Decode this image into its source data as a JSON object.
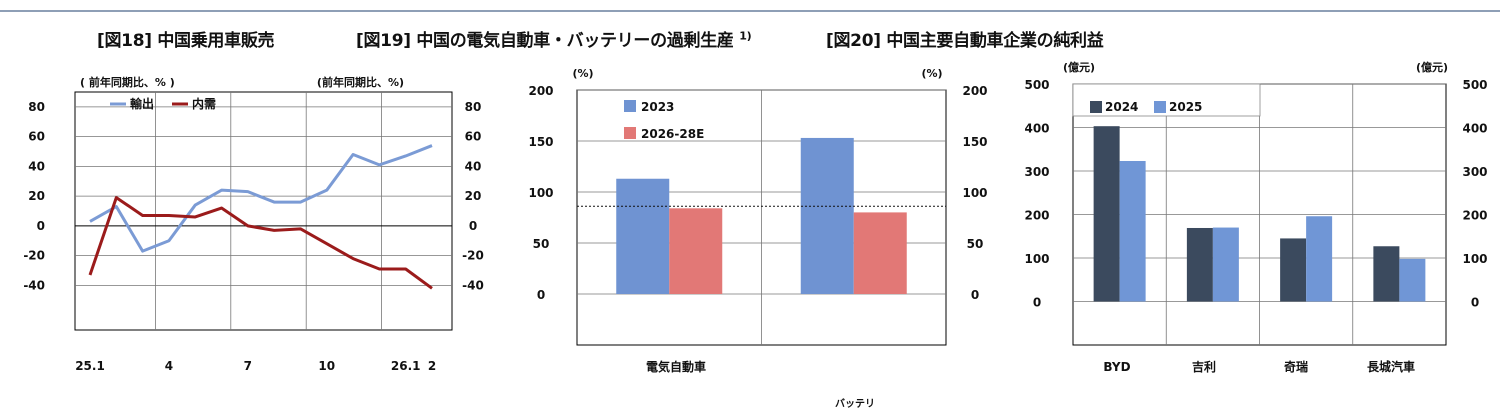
{
  "titles": {
    "fig18": "[図18] 中国乗用車販売",
    "fig19": "[図19] 中国の電気自動車・バッテリーの過剰生産",
    "fig19_sup": "1)",
    "fig20": "[図20] 中国主要自動車企業の純利益"
  },
  "chart_data": [
    {
      "type": "line",
      "title": "[図18] 中国乗用車販売",
      "left_unit": "( 前年同期比、% )",
      "right_unit": "(前年同期比、%)",
      "ylim": [
        -70,
        90
      ],
      "yticks": [
        80,
        60,
        40,
        20,
        0,
        -20,
        -40
      ],
      "x_tick_labels": [
        {
          "i": 0,
          "label": "25.1"
        },
        {
          "i": 3,
          "label": "4"
        },
        {
          "i": 6,
          "label": "7"
        },
        {
          "i": 9,
          "label": "10"
        },
        {
          "i": 12,
          "label": "26.1"
        },
        {
          "i": 13,
          "label": "2"
        }
      ],
      "x": [
        "25.1",
        "25.2",
        "25.3",
        "25.4",
        "25.5",
        "25.6",
        "25.7",
        "25.8",
        "25.9",
        "25.10",
        "25.11",
        "25.12",
        "26.1",
        "26.2"
      ],
      "series": [
        {
          "name": "輸出",
          "color": "#7b9bd5",
          "values": [
            3,
            13,
            -17,
            -10,
            14,
            24,
            23,
            16,
            16,
            24,
            48,
            41,
            47,
            54
          ]
        },
        {
          "name": "内需",
          "color": "#9b1b1b",
          "values": [
            -33,
            19,
            7,
            7,
            6,
            12,
            0,
            -3,
            -2,
            -12,
            -22,
            -29,
            -29,
            -42
          ]
        }
      ],
      "grid": true
    },
    {
      "type": "bar",
      "title": "[図19] 中国の電気自動車・バッテリーの過剰生産",
      "left_unit": "(%)",
      "right_unit": "(%)",
      "ylim": [
        -50,
        200
      ],
      "yticks": [
        200,
        150,
        100,
        50,
        0
      ],
      "categories": [
        "電気自動車",
        "バッテリ"
      ],
      "series": [
        {
          "name": "2023",
          "color": "#6f93d2",
          "values": [
            113,
            153
          ]
        },
        {
          "name": "2026-28E",
          "color": "#e27876",
          "values": [
            84,
            80
          ]
        }
      ],
      "reference_line": 86,
      "grid": true
    },
    {
      "type": "bar",
      "title": "[図20] 中国主要自動車企業の純利益",
      "left_unit": "(億元)",
      "right_unit": "(億元)",
      "ylim": [
        -100,
        500
      ],
      "yticks": [
        500,
        400,
        300,
        200,
        100,
        0
      ],
      "categories": [
        "BYD",
        "吉利",
        "奇瑞",
        "長城汽車"
      ],
      "series": [
        {
          "name": "2024",
          "color": "#3b4a5e",
          "values": [
            403,
            169,
            145,
            127
          ]
        },
        {
          "name": "2025",
          "color": "#7096d6",
          "values": [
            323,
            170,
            196,
            98
          ]
        }
      ],
      "grid": true
    }
  ]
}
